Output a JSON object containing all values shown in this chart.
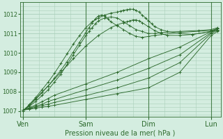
{
  "bg_color": "#d4ede0",
  "line_color": "#2d6a2d",
  "grid_color": "#aacfba",
  "title": "Pression niveau de la mer( hPa )",
  "yticks": [
    1007,
    1008,
    1009,
    1010,
    1011,
    1012
  ],
  "xtick_labels": [
    "Ven",
    "Sam",
    "Dim",
    "Lun"
  ],
  "xtick_positions": [
    0,
    1,
    2,
    3
  ],
  "ylim": [
    1006.7,
    1012.6
  ],
  "xlim": [
    -0.05,
    3.15
  ],
  "figsize": [
    3.2,
    2.0
  ],
  "dpi": 100,
  "series": [
    {
      "x": [
        0.0,
        0.1,
        0.2,
        0.3,
        0.4,
        0.5,
        1.0,
        1.5,
        2.0,
        2.5,
        3.0,
        3.1
      ],
      "y": [
        1007.05,
        1007.1,
        1007.15,
        1007.2,
        1007.25,
        1007.3,
        1007.6,
        1007.9,
        1008.2,
        1009.0,
        1010.9,
        1011.1
      ]
    },
    {
      "x": [
        0.0,
        0.1,
        0.2,
        0.3,
        0.4,
        0.5,
        1.0,
        1.5,
        2.0,
        2.5,
        3.0,
        3.1
      ],
      "y": [
        1007.05,
        1007.12,
        1007.2,
        1007.28,
        1007.36,
        1007.45,
        1007.8,
        1008.2,
        1008.7,
        1009.5,
        1011.0,
        1011.15
      ]
    },
    {
      "x": [
        0.0,
        0.1,
        0.2,
        0.3,
        0.4,
        0.5,
        1.0,
        1.5,
        2.0,
        2.5,
        3.0,
        3.1
      ],
      "y": [
        1007.05,
        1007.15,
        1007.25,
        1007.35,
        1007.5,
        1007.6,
        1008.1,
        1008.6,
        1009.2,
        1009.9,
        1011.05,
        1011.2
      ]
    },
    {
      "x": [
        0.0,
        0.1,
        0.2,
        0.3,
        0.4,
        0.5,
        1.0,
        1.5,
        2.0,
        2.5,
        3.0,
        3.1
      ],
      "y": [
        1007.05,
        1007.18,
        1007.32,
        1007.48,
        1007.65,
        1007.82,
        1008.4,
        1009.0,
        1009.7,
        1010.3,
        1011.1,
        1011.25
      ]
    },
    {
      "x": [
        0.0,
        0.1,
        0.2,
        0.3,
        0.4,
        0.5,
        0.6,
        0.7,
        0.8,
        0.9,
        1.0,
        1.05,
        1.1,
        1.15,
        1.2,
        1.3,
        1.4,
        1.5,
        1.6,
        1.7,
        1.8,
        1.9,
        2.0,
        2.1,
        2.2,
        2.5,
        2.8,
        3.0,
        3.1
      ],
      "y": [
        1007.05,
        1007.25,
        1007.5,
        1007.8,
        1008.1,
        1008.5,
        1008.9,
        1009.4,
        1009.9,
        1010.4,
        1010.9,
        1011.1,
        1011.3,
        1011.5,
        1011.65,
        1011.8,
        1011.85,
        1011.8,
        1011.6,
        1011.4,
        1011.2,
        1011.1,
        1011.0,
        1011.0,
        1011.05,
        1011.1,
        1011.15,
        1011.2,
        1011.3
      ]
    },
    {
      "x": [
        0.0,
        0.1,
        0.2,
        0.3,
        0.4,
        0.5,
        0.6,
        0.7,
        0.8,
        0.9,
        1.0,
        1.05,
        1.1,
        1.15,
        1.2,
        1.25,
        1.3,
        1.35,
        1.4,
        1.5,
        1.6,
        1.7,
        1.8,
        1.9,
        2.0,
        2.1,
        2.5,
        3.0,
        3.1
      ],
      "y": [
        1007.05,
        1007.3,
        1007.6,
        1007.95,
        1008.3,
        1008.7,
        1009.1,
        1009.55,
        1010.05,
        1010.55,
        1011.05,
        1011.3,
        1011.55,
        1011.75,
        1011.9,
        1011.95,
        1011.9,
        1011.75,
        1011.6,
        1011.4,
        1011.2,
        1011.0,
        1010.85,
        1010.8,
        1010.85,
        1010.9,
        1011.05,
        1011.15,
        1011.25
      ]
    },
    {
      "x": [
        0.0,
        0.1,
        0.2,
        0.3,
        0.4,
        0.5,
        0.6,
        0.7,
        0.8,
        0.9,
        1.0,
        1.1,
        1.2,
        1.3,
        1.4,
        1.5,
        1.55,
        1.6,
        1.65,
        1.7,
        1.75,
        1.8,
        1.85,
        1.9,
        1.95,
        2.0,
        2.05,
        2.1,
        2.2,
        2.3,
        2.5,
        2.7,
        3.0,
        3.1
      ],
      "y": [
        1007.0,
        1007.35,
        1007.7,
        1008.1,
        1008.5,
        1008.95,
        1009.45,
        1009.95,
        1010.45,
        1010.9,
        1011.3,
        1011.6,
        1011.8,
        1011.95,
        1012.05,
        1012.1,
        1012.15,
        1012.2,
        1012.22,
        1012.25,
        1012.25,
        1012.2,
        1012.1,
        1011.95,
        1011.8,
        1011.65,
        1011.5,
        1011.35,
        1011.2,
        1011.1,
        1011.0,
        1010.95,
        1011.1,
        1011.2
      ]
    },
    {
      "x": [
        0.0,
        0.1,
        0.2,
        0.4,
        0.6,
        0.8,
        1.0,
        1.2,
        1.4,
        1.5,
        1.6,
        1.65,
        1.7,
        1.75,
        1.8,
        1.85,
        1.9,
        2.0,
        2.1,
        2.2,
        2.3,
        2.5,
        2.7,
        3.0,
        3.1
      ],
      "y": [
        1007.0,
        1007.3,
        1007.65,
        1008.3,
        1009.0,
        1009.7,
        1010.35,
        1010.9,
        1011.3,
        1011.45,
        1011.55,
        1011.6,
        1011.65,
        1011.7,
        1011.7,
        1011.65,
        1011.55,
        1011.35,
        1011.15,
        1011.0,
        1010.9,
        1010.9,
        1010.95,
        1011.1,
        1011.2
      ]
    }
  ]
}
